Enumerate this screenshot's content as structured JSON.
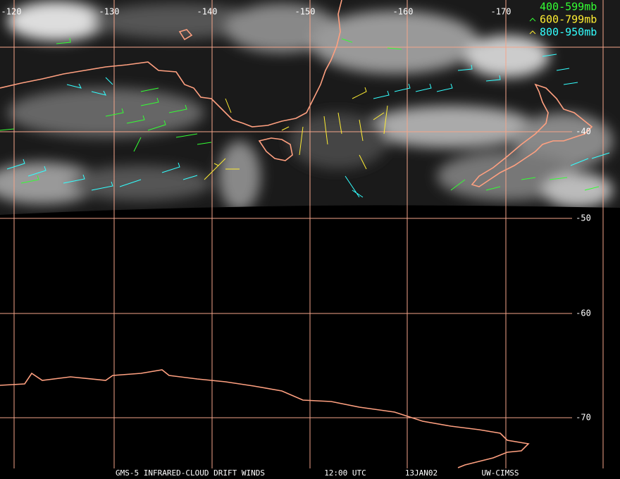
{
  "longitude_labels": [
    "-120",
    "-130",
    "-140",
    "-150",
    "-160",
    "-170"
  ],
  "latitude_labels": [
    "-40",
    "-50",
    "-60",
    "-70"
  ],
  "legend": [
    {
      "label": "400-599mb",
      "color": "#33ff33"
    },
    {
      "label": "600-799mb",
      "color": "#ffee33"
    },
    {
      "label": "800-950mb",
      "color": "#33ffff"
    }
  ],
  "footer": [
    "GMS-5 INFRARED-CLOUD DRIFT WINDS",
    "12:00 UTC",
    "13JAN02",
    "UW-CIMSS"
  ]
}
